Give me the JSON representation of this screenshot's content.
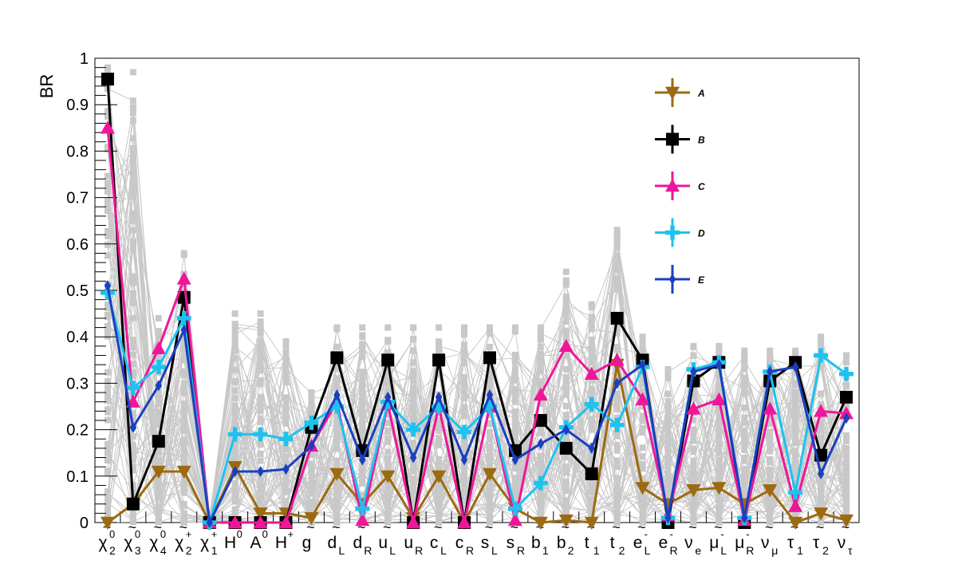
{
  "chart_data": {
    "type": "line",
    "ylabel": "BR",
    "ylim": [
      0,
      1
    ],
    "yticks": [
      "0",
      "0.1",
      "0.2",
      "0.3",
      "0.4",
      "0.5",
      "0.6",
      "0.7",
      "0.8",
      "0.9",
      "1"
    ],
    "categories": [
      {
        "base": "χ",
        "tilde": true,
        "sup": "0",
        "sub": "2"
      },
      {
        "base": "χ",
        "tilde": true,
        "sup": "0",
        "sub": "3"
      },
      {
        "base": "χ",
        "tilde": true,
        "sup": "0",
        "sub": "4"
      },
      {
        "base": "χ",
        "tilde": true,
        "sup": "+",
        "sub": "2"
      },
      {
        "base": "χ",
        "tilde": true,
        "sup": "+",
        "sub": "1"
      },
      {
        "base": "H",
        "tilde": false,
        "sup": "0",
        "sub": ""
      },
      {
        "base": "A",
        "tilde": false,
        "sup": "0",
        "sub": ""
      },
      {
        "base": "H",
        "tilde": false,
        "sup": "+",
        "sub": ""
      },
      {
        "base": "g",
        "tilde": true,
        "sup": "",
        "sub": ""
      },
      {
        "base": "d",
        "tilde": true,
        "sup": "",
        "sub": "L"
      },
      {
        "base": "d",
        "tilde": true,
        "sup": "",
        "sub": "R"
      },
      {
        "base": "u",
        "tilde": true,
        "sup": "",
        "sub": "L"
      },
      {
        "base": "u",
        "tilde": true,
        "sup": "",
        "sub": "R"
      },
      {
        "base": "c",
        "tilde": true,
        "sup": "",
        "sub": "L"
      },
      {
        "base": "c",
        "tilde": true,
        "sup": "",
        "sub": "R"
      },
      {
        "base": "s",
        "tilde": true,
        "sup": "",
        "sub": "L"
      },
      {
        "base": "s",
        "tilde": true,
        "sup": "",
        "sub": "R"
      },
      {
        "base": "b",
        "tilde": true,
        "sup": "",
        "sub": "1"
      },
      {
        "base": "b",
        "tilde": true,
        "sup": "",
        "sub": "2"
      },
      {
        "base": "t",
        "tilde": true,
        "sup": "",
        "sub": "1"
      },
      {
        "base": "t",
        "tilde": true,
        "sup": "",
        "sub": "2"
      },
      {
        "base": "e",
        "tilde": true,
        "sup": "-",
        "sub": "L"
      },
      {
        "base": "e",
        "tilde": true,
        "sup": "-",
        "sub": "R"
      },
      {
        "base": "ν",
        "tilde": true,
        "sup": "",
        "sub": "e"
      },
      {
        "base": "μ",
        "tilde": true,
        "sup": "-",
        "sub": "L"
      },
      {
        "base": "μ",
        "tilde": true,
        "sup": "-",
        "sub": "R"
      },
      {
        "base": "ν",
        "tilde": true,
        "sup": "",
        "sub": "μ"
      },
      {
        "base": "τ",
        "tilde": true,
        "sup": "",
        "sub": "1"
      },
      {
        "base": "τ",
        "tilde": true,
        "sup": "",
        "sub": "2"
      },
      {
        "base": "ν",
        "tilde": true,
        "sup": "",
        "sub": "τ"
      }
    ],
    "background": {
      "color": "#c8c8c8",
      "description_free": true,
      "upper_envelope": [
        0.98,
        0.97,
        0.44,
        0.58,
        0.02,
        0.45,
        0.45,
        0.39,
        0.28,
        0.42,
        0.42,
        0.42,
        0.42,
        0.42,
        0.42,
        0.42,
        0.42,
        0.42,
        0.54,
        0.47,
        0.63,
        0.4,
        0.33,
        0.38,
        0.38,
        0.37,
        0.37,
        0.37,
        0.4,
        0.36
      ]
    },
    "series": [
      {
        "name": "A",
        "color": "#9c6a10",
        "marker": "triangle-down",
        "values": [
          0.0,
          0.04,
          0.11,
          0.11,
          0.0,
          0.12,
          0.02,
          0.02,
          0.01,
          0.105,
          0.04,
          0.1,
          0.01,
          0.1,
          0.0,
          0.105,
          0.03,
          0.0,
          0.005,
          0.0,
          0.34,
          0.075,
          0.04,
          0.07,
          0.075,
          0.04,
          0.07,
          0.0,
          0.02,
          0.005
        ]
      },
      {
        "name": "B",
        "color": "#000000",
        "marker": "square",
        "values": [
          0.955,
          0.04,
          0.175,
          0.485,
          0.0,
          0.0,
          0.0,
          0.0,
          0.205,
          0.355,
          0.155,
          0.35,
          0.0,
          0.35,
          0.0,
          0.355,
          0.155,
          0.22,
          0.16,
          0.105,
          0.44,
          0.35,
          0.0,
          0.305,
          0.345,
          0.0,
          0.305,
          0.345,
          0.145,
          0.27
        ]
      },
      {
        "name": "C",
        "color": "#f0169a",
        "marker": "triangle-up",
        "values": [
          0.85,
          0.26,
          0.375,
          0.525,
          0.0,
          0.0,
          0.0,
          0.0,
          0.165,
          0.26,
          0.005,
          0.255,
          0.0,
          0.25,
          0.0,
          0.25,
          0.005,
          0.275,
          0.38,
          0.32,
          0.35,
          0.265,
          0.015,
          0.245,
          0.265,
          0.005,
          0.245,
          0.035,
          0.24,
          0.235
        ]
      },
      {
        "name": "D",
        "color": "#1ec2ef",
        "marker": "cross",
        "values": [
          0.495,
          0.29,
          0.335,
          0.44,
          0.0,
          0.19,
          0.19,
          0.18,
          0.215,
          0.25,
          0.03,
          0.26,
          0.2,
          0.25,
          0.195,
          0.25,
          0.03,
          0.085,
          0.205,
          0.255,
          0.21,
          0.335,
          0.01,
          0.33,
          0.345,
          0.01,
          0.325,
          0.065,
          0.36,
          0.32
        ]
      },
      {
        "name": "E",
        "color": "#1b3fbf",
        "marker": "diamond",
        "values": [
          0.51,
          0.205,
          0.295,
          0.415,
          0.0,
          0.11,
          0.11,
          0.115,
          0.165,
          0.275,
          0.135,
          0.27,
          0.14,
          0.27,
          0.135,
          0.275,
          0.135,
          0.17,
          0.2,
          0.16,
          0.3,
          0.34,
          0.01,
          0.325,
          0.34,
          0.01,
          0.325,
          0.335,
          0.105,
          0.225
        ]
      }
    ]
  }
}
